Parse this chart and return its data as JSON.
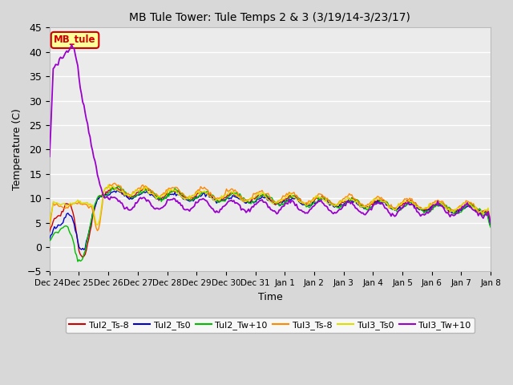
{
  "title": "MB Tule Tower: Tule Temps 2 & 3 (3/19/14-3/23/17)",
  "xlabel": "Time",
  "ylabel": "Temperature (C)",
  "ylim": [
    -5,
    45
  ],
  "yticks": [
    -5,
    0,
    5,
    10,
    15,
    20,
    25,
    30,
    35,
    40,
    45
  ],
  "fig_bg": "#d8d8d8",
  "plot_bg": "#ebebeb",
  "legend_label": "MB_tule",
  "legend_bg": "#ffff99",
  "legend_border": "#cc0000",
  "xtick_labels": [
    "Dec 24",
    "Dec 25",
    "Dec 26",
    "Dec 27",
    "Dec 28",
    "Dec 29",
    "Dec 30",
    "Dec 31",
    "Jan 1",
    "Jan 2",
    "Jan 3",
    "Jan 4",
    "Jan 5",
    "Jan 6",
    "Jan 7",
    "Jan 8"
  ],
  "series": {
    "Tul2_Ts-8": {
      "color": "#cc0000",
      "lw": 1.0
    },
    "Tul2_Ts0": {
      "color": "#0000cc",
      "lw": 1.0
    },
    "Tul2_Tw+10": {
      "color": "#00bb00",
      "lw": 1.0
    },
    "Tul3_Ts-8": {
      "color": "#ff8800",
      "lw": 1.0
    },
    "Tul3_Ts0": {
      "color": "#dddd00",
      "lw": 1.0
    },
    "Tul3_Tw+10": {
      "color": "#9900cc",
      "lw": 1.3
    }
  }
}
